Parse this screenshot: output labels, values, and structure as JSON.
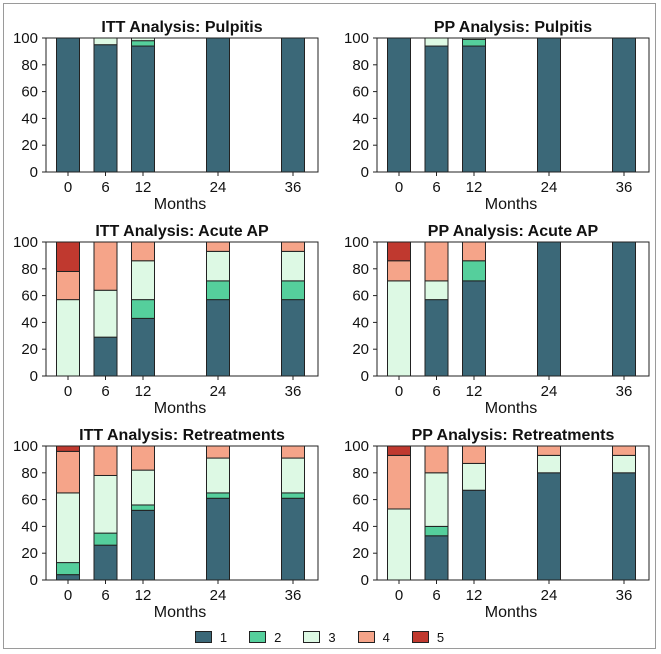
{
  "colors": {
    "1": "#3b6878",
    "2": "#55cf9c",
    "3": "#ddf9e4",
    "4": "#f5a489",
    "5": "#c0392f"
  },
  "legend": {
    "items": [
      {
        "key": "1",
        "label": "1"
      },
      {
        "key": "2",
        "label": "2"
      },
      {
        "key": "3",
        "label": "3"
      },
      {
        "key": "4",
        "label": "4"
      },
      {
        "key": "5",
        "label": "5"
      }
    ]
  },
  "chart_data": [
    {
      "type": "bar",
      "stacked": true,
      "title": "ITT Analysis: Pulpitis",
      "xlabel": "Months",
      "ylabel": "",
      "categories": [
        "0",
        "6",
        "12",
        "24",
        "36"
      ],
      "ylim": [
        0,
        100
      ],
      "yticks": [
        "0",
        "20",
        "40",
        "60",
        "80",
        "100"
      ],
      "series": [
        {
          "name": "1",
          "values": [
            100,
            95,
            94,
            100,
            100
          ]
        },
        {
          "name": "2",
          "values": [
            0,
            0,
            4,
            0,
            0
          ]
        },
        {
          "name": "3",
          "values": [
            0,
            5,
            2,
            0,
            0
          ]
        },
        {
          "name": "4",
          "values": [
            0,
            0,
            0,
            0,
            0
          ]
        },
        {
          "name": "5",
          "values": [
            0,
            0,
            0,
            0,
            0
          ]
        }
      ]
    },
    {
      "type": "bar",
      "stacked": true,
      "title": "PP Analysis: Pulpitis",
      "xlabel": "Months",
      "ylabel": "",
      "categories": [
        "0",
        "6",
        "12",
        "24",
        "36"
      ],
      "ylim": [
        0,
        100
      ],
      "yticks": [
        "0",
        "20",
        "40",
        "60",
        "80",
        "100"
      ],
      "series": [
        {
          "name": "1",
          "values": [
            100,
            94,
            94,
            100,
            100
          ]
        },
        {
          "name": "2",
          "values": [
            0,
            0,
            5,
            0,
            0
          ]
        },
        {
          "name": "3",
          "values": [
            0,
            6,
            1,
            0,
            0
          ]
        },
        {
          "name": "4",
          "values": [
            0,
            0,
            0,
            0,
            0
          ]
        },
        {
          "name": "5",
          "values": [
            0,
            0,
            0,
            0,
            0
          ]
        }
      ]
    },
    {
      "type": "bar",
      "stacked": true,
      "title": "ITT Analysis: Acute AP",
      "xlabel": "Months",
      "ylabel": "",
      "categories": [
        "0",
        "6",
        "12",
        "24",
        "36"
      ],
      "ylim": [
        0,
        100
      ],
      "yticks": [
        "0",
        "20",
        "40",
        "60",
        "80",
        "100"
      ],
      "series": [
        {
          "name": "1",
          "values": [
            0,
            29,
            43,
            57,
            57
          ]
        },
        {
          "name": "2",
          "values": [
            0,
            0,
            14,
            14,
            14
          ]
        },
        {
          "name": "3",
          "values": [
            57,
            35,
            29,
            22,
            22
          ]
        },
        {
          "name": "4",
          "values": [
            21,
            36,
            14,
            7,
            7
          ]
        },
        {
          "name": "5",
          "values": [
            22,
            0,
            0,
            0,
            0
          ]
        }
      ]
    },
    {
      "type": "bar",
      "stacked": true,
      "title": "PP Analysis: Acute AP",
      "xlabel": "Months",
      "ylabel": "",
      "categories": [
        "0",
        "6",
        "12",
        "24",
        "36"
      ],
      "ylim": [
        0,
        100
      ],
      "yticks": [
        "0",
        "20",
        "40",
        "60",
        "80",
        "100"
      ],
      "series": [
        {
          "name": "1",
          "values": [
            0,
            57,
            71,
            100,
            100
          ]
        },
        {
          "name": "2",
          "values": [
            0,
            0,
            15,
            0,
            0
          ]
        },
        {
          "name": "3",
          "values": [
            71,
            14,
            0,
            0,
            0
          ]
        },
        {
          "name": "4",
          "values": [
            15,
            29,
            14,
            0,
            0
          ]
        },
        {
          "name": "5",
          "values": [
            14,
            0,
            0,
            0,
            0
          ]
        }
      ]
    },
    {
      "type": "bar",
      "stacked": true,
      "title": "ITT Analysis: Retreatments",
      "xlabel": "Months",
      "ylabel": "",
      "categories": [
        "0",
        "6",
        "12",
        "24",
        "36"
      ],
      "ylim": [
        0,
        100
      ],
      "yticks": [
        "0",
        "20",
        "40",
        "60",
        "80",
        "100"
      ],
      "series": [
        {
          "name": "1",
          "values": [
            4,
            26,
            52,
            61,
            61
          ]
        },
        {
          "name": "2",
          "values": [
            9,
            9,
            4,
            4,
            4
          ]
        },
        {
          "name": "3",
          "values": [
            52,
            43,
            26,
            26,
            26
          ]
        },
        {
          "name": "4",
          "values": [
            31,
            22,
            18,
            9,
            9
          ]
        },
        {
          "name": "5",
          "values": [
            4,
            0,
            0,
            0,
            0
          ]
        }
      ]
    },
    {
      "type": "bar",
      "stacked": true,
      "title": "PP Analysis: Retreatments",
      "xlabel": "Months",
      "ylabel": "",
      "categories": [
        "0",
        "6",
        "12",
        "24",
        "36"
      ],
      "ylim": [
        0,
        100
      ],
      "yticks": [
        "0",
        "20",
        "40",
        "60",
        "80",
        "100"
      ],
      "series": [
        {
          "name": "1",
          "values": [
            0,
            33,
            67,
            80,
            80
          ]
        },
        {
          "name": "2",
          "values": [
            0,
            7,
            0,
            0,
            0
          ]
        },
        {
          "name": "3",
          "values": [
            53,
            40,
            20,
            13,
            13
          ]
        },
        {
          "name": "4",
          "values": [
            40,
            20,
            13,
            7,
            7
          ]
        },
        {
          "name": "5",
          "values": [
            7,
            0,
            0,
            0,
            0
          ]
        }
      ]
    }
  ]
}
